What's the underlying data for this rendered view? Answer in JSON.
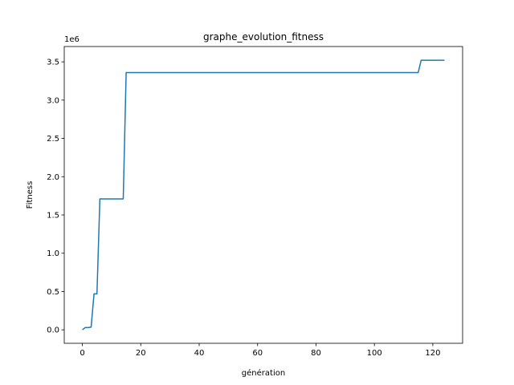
{
  "chart_data": {
    "type": "line",
    "title": "graphe_evolution_fitness",
    "xlabel": "génération",
    "ylabel": "Fitness",
    "y_offset_label": "1e6",
    "xlim": [
      -6.2,
      130.2
    ],
    "ylim": [
      -176000,
      3700000
    ],
    "xticks": [
      0,
      20,
      40,
      60,
      80,
      100,
      120
    ],
    "xtick_labels": [
      "0",
      "20",
      "40",
      "60",
      "80",
      "100",
      "120"
    ],
    "yticks": [
      0,
      500000,
      1000000,
      1500000,
      2000000,
      2500000,
      3000000,
      3500000
    ],
    "ytick_labels": [
      "0.0",
      "0.5",
      "1.0",
      "1.5",
      "2.0",
      "2.5",
      "3.0",
      "3.5"
    ],
    "grid": false,
    "color": "#1f77b4",
    "series": [
      {
        "x": [
          0,
          1,
          2,
          3,
          4,
          5,
          6,
          7,
          8,
          9,
          10,
          11,
          12,
          13,
          14,
          15,
          20,
          40,
          60,
          80,
          100,
          110,
          114,
          115,
          116,
          117,
          118,
          119,
          120,
          121,
          122,
          123,
          124
        ],
        "values": [
          0,
          30000,
          30000,
          35000,
          470000,
          470000,
          1710000,
          1710000,
          1710000,
          1710000,
          1710000,
          1710000,
          1710000,
          1710000,
          1710000,
          3360000,
          3360000,
          3360000,
          3360000,
          3360000,
          3360000,
          3360000,
          3360000,
          3360000,
          3520000,
          3520000,
          3520000,
          3520000,
          3520000,
          3520000,
          3520000,
          3520000,
          3520000
        ]
      }
    ]
  }
}
